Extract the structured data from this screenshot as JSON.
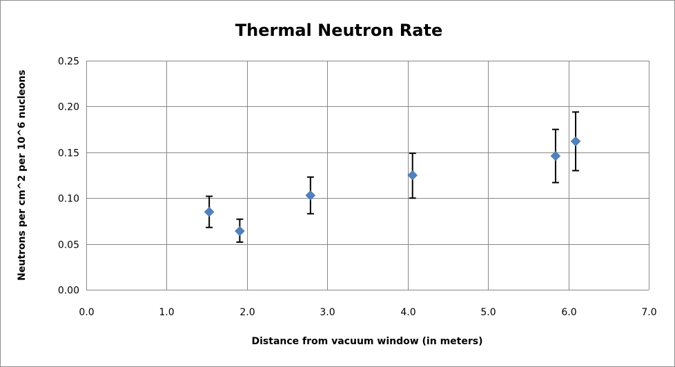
{
  "chart_data": {
    "type": "scatter",
    "title": "Thermal Neutron Rate",
    "xlabel": "Distance from vacuum window (in meters)",
    "ylabel": "Neutrons per cm^2 per 10^6 nucleons",
    "xlim": [
      0,
      7
    ],
    "ylim": [
      0,
      0.25
    ],
    "x_ticks": [
      "0.0",
      "1.0",
      "2.0",
      "3.0",
      "4.0",
      "5.0",
      "6.0",
      "7.0"
    ],
    "y_ticks": [
      "0.00",
      "0.05",
      "0.10",
      "0.15",
      "0.20",
      "0.25"
    ],
    "grid": true,
    "legend": false,
    "marker": "diamond",
    "marker_color": "#4f81bd",
    "points": [
      {
        "x": 1.53,
        "y": 0.085,
        "y_low": 0.068,
        "y_high": 0.102
      },
      {
        "x": 1.91,
        "y": 0.064,
        "y_low": 0.052,
        "y_high": 0.077
      },
      {
        "x": 2.79,
        "y": 0.103,
        "y_low": 0.083,
        "y_high": 0.123
      },
      {
        "x": 4.06,
        "y": 0.125,
        "y_low": 0.1,
        "y_high": 0.149
      },
      {
        "x": 5.84,
        "y": 0.146,
        "y_low": 0.117,
        "y_high": 0.175
      },
      {
        "x": 6.09,
        "y": 0.162,
        "y_low": 0.13,
        "y_high": 0.194
      }
    ]
  }
}
